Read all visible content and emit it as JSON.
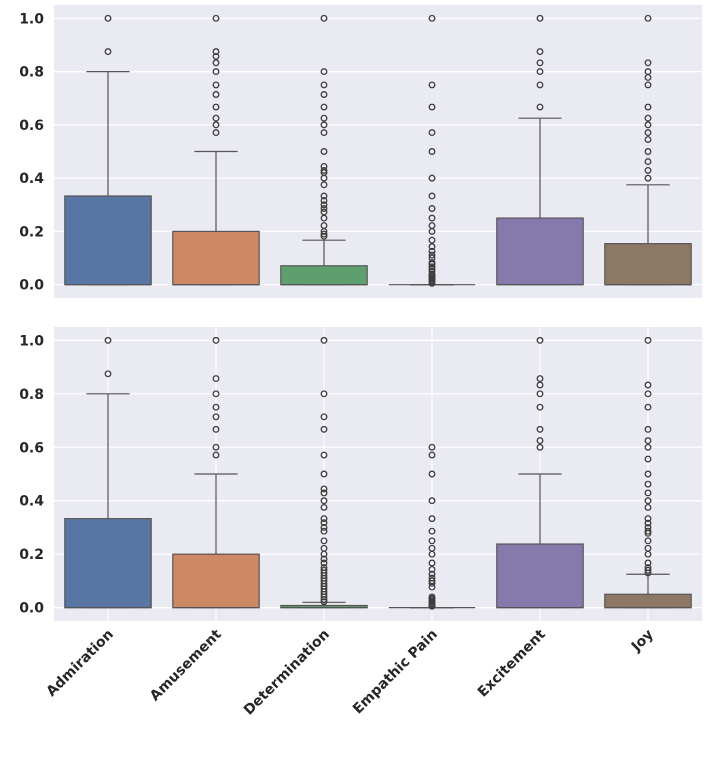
{
  "chart_data": [
    {
      "type": "box",
      "title": "",
      "xlabel": "",
      "ylabel": "",
      "ylim": [
        -0.05,
        1.05
      ],
      "yticks": [
        "0.0",
        "0.2",
        "0.4",
        "0.6",
        "0.8",
        "1.0"
      ],
      "grid": {
        "horizontal": true,
        "vertical": false
      },
      "show_xtick_labels": false,
      "categories": [
        "Admiration",
        "Amusement",
        "Determination",
        "Empathic Pain",
        "Excitement",
        "Joy"
      ],
      "colors": [
        "#5975a4",
        "#cc8963",
        "#5f9e6e",
        "#b55d60",
        "#857aab",
        "#8d7866"
      ],
      "boxes": [
        {
          "q1": 0,
          "median": 0,
          "q3": 0.333,
          "whislo": 0,
          "whishi": 0.8,
          "fliers": [
            0.875,
            1.0
          ]
        },
        {
          "q1": 0,
          "median": 0,
          "q3": 0.2,
          "whislo": 0,
          "whishi": 0.5,
          "fliers": [
            0.571,
            0.6,
            0.625,
            0.667,
            0.714,
            0.75,
            0.8,
            0.833,
            0.857,
            0.875,
            1.0
          ]
        },
        {
          "q1": 0,
          "median": 0,
          "q3": 0.071,
          "whislo": 0,
          "whishi": 0.167,
          "fliers": [
            0.182,
            0.19,
            0.2,
            0.222,
            0.25,
            0.273,
            0.286,
            0.3,
            0.316,
            0.333,
            0.375,
            0.4,
            0.421,
            0.429,
            0.444,
            0.5,
            0.571,
            0.6,
            0.625,
            0.667,
            0.714,
            0.75,
            0.8,
            1.0
          ]
        },
        {
          "q1": 0,
          "median": 0,
          "q3": 0,
          "whislo": 0,
          "whishi": 0,
          "fliers": [
            0.005,
            0.01,
            0.015,
            0.02,
            0.025,
            0.03,
            0.035,
            0.04,
            0.05,
            0.059,
            0.067,
            0.077,
            0.083,
            0.1,
            0.111,
            0.125,
            0.143,
            0.167,
            0.2,
            0.222,
            0.25,
            0.286,
            0.333,
            0.4,
            0.5,
            0.571,
            0.667,
            0.75,
            1.0
          ]
        },
        {
          "q1": 0,
          "median": 0,
          "q3": 0.25,
          "whislo": 0,
          "whishi": 0.625,
          "fliers": [
            0.667,
            0.75,
            0.8,
            0.833,
            0.875,
            1.0
          ]
        },
        {
          "q1": 0,
          "median": 0,
          "q3": 0.154,
          "whislo": 0,
          "whishi": 0.375,
          "fliers": [
            0.4,
            0.429,
            0.462,
            0.5,
            0.545,
            0.571,
            0.6,
            0.625,
            0.667,
            0.75,
            0.778,
            0.8,
            0.833,
            1.0
          ]
        }
      ]
    },
    {
      "type": "box",
      "title": "",
      "xlabel": "",
      "ylabel": "",
      "ylim": [
        -0.05,
        1.05
      ],
      "yticks": [
        "0.0",
        "0.2",
        "0.4",
        "0.6",
        "0.8",
        "1.0"
      ],
      "grid": {
        "horizontal": true,
        "vertical": true
      },
      "show_xtick_labels": true,
      "categories": [
        "Admiration",
        "Amusement",
        "Determination",
        "Empathic Pain",
        "Excitement",
        "Joy"
      ],
      "colors": [
        "#5975a4",
        "#cc8963",
        "#5f9e6e",
        "#b55d60",
        "#857aab",
        "#8d7866"
      ],
      "boxes": [
        {
          "q1": 0,
          "median": 0,
          "q3": 0.333,
          "whislo": 0,
          "whishi": 0.8,
          "fliers": [
            0.875,
            1.0
          ]
        },
        {
          "q1": 0,
          "median": 0,
          "q3": 0.2,
          "whislo": 0,
          "whishi": 0.5,
          "fliers": [
            0.571,
            0.6,
            0.667,
            0.714,
            0.75,
            0.8,
            0.857,
            1.0
          ]
        },
        {
          "q1": 0,
          "median": 0,
          "q3": 0.008,
          "whislo": 0,
          "whishi": 0.02,
          "fliers": [
            0.022,
            0.03,
            0.04,
            0.05,
            0.06,
            0.07,
            0.08,
            0.09,
            0.1,
            0.11,
            0.12,
            0.13,
            0.14,
            0.15,
            0.167,
            0.182,
            0.2,
            0.222,
            0.25,
            0.286,
            0.3,
            0.318,
            0.333,
            0.375,
            0.4,
            0.429,
            0.444,
            0.5,
            0.571,
            0.667,
            0.714,
            0.8,
            1.0
          ]
        },
        {
          "q1": 0,
          "median": 0,
          "q3": 0,
          "whislo": 0,
          "whishi": 0,
          "fliers": [
            0.005,
            0.01,
            0.015,
            0.02,
            0.025,
            0.03,
            0.035,
            0.04,
            0.077,
            0.091,
            0.1,
            0.111,
            0.125,
            0.143,
            0.167,
            0.2,
            0.222,
            0.25,
            0.286,
            0.333,
            0.4,
            0.5,
            0.571,
            0.6
          ]
        },
        {
          "q1": 0,
          "median": 0,
          "q3": 0.238,
          "whislo": 0,
          "whishi": 0.5,
          "fliers": [
            0.6,
            0.625,
            0.667,
            0.75,
            0.8,
            0.833,
            0.857,
            1.0
          ]
        },
        {
          "q1": 0,
          "median": 0,
          "q3": 0.05,
          "whislo": 0,
          "whishi": 0.125,
          "fliers": [
            0.13,
            0.14,
            0.15,
            0.167,
            0.2,
            0.222,
            0.25,
            0.278,
            0.286,
            0.3,
            0.316,
            0.333,
            0.375,
            0.4,
            0.429,
            0.462,
            0.5,
            0.556,
            0.6,
            0.625,
            0.667,
            0.75,
            0.8,
            0.833,
            1.0
          ]
        }
      ]
    }
  ]
}
